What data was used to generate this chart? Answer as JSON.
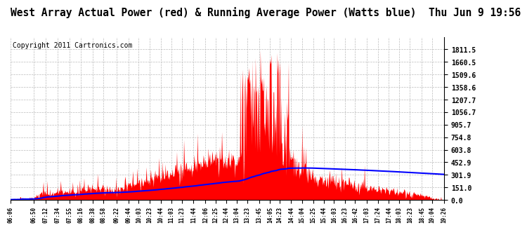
{
  "title": "West Array Actual Power (red) & Running Average Power (Watts blue)  Thu Jun 9 19:56",
  "copyright": "Copyright 2011 Cartronics.com",
  "ylim": [
    0.0,
    1962.0
  ],
  "yticks": [
    0.0,
    151.0,
    301.9,
    452.9,
    603.8,
    754.8,
    905.7,
    1056.7,
    1207.7,
    1358.6,
    1509.6,
    1660.5,
    1811.5
  ],
  "ytick_labels": [
    "0.0",
    "151.0",
    "301.9",
    "452.9",
    "603.8",
    "754.8",
    "905.7",
    "1056.7",
    "1207.7",
    "1358.6",
    "1509.6",
    "1660.5",
    "1811.5"
  ],
  "background_color": "#ffffff",
  "grid_color": "#bbbbbb",
  "red_color": "#ff0000",
  "blue_color": "#0000ff",
  "title_fontsize": 10.5,
  "copyright_fontsize": 7,
  "xtick_labels": [
    "06:06",
    "06:50",
    "07:12",
    "07:34",
    "07:55",
    "08:16",
    "08:38",
    "08:58",
    "09:22",
    "09:44",
    "10:03",
    "10:23",
    "10:44",
    "11:03",
    "11:23",
    "11:44",
    "12:06",
    "12:25",
    "12:44",
    "13:04",
    "13:23",
    "13:45",
    "14:05",
    "14:23",
    "14:44",
    "15:04",
    "15:25",
    "15:44",
    "16:03",
    "16:23",
    "16:42",
    "17:03",
    "17:24",
    "17:44",
    "18:03",
    "18:23",
    "18:45",
    "19:04",
    "19:26"
  ]
}
